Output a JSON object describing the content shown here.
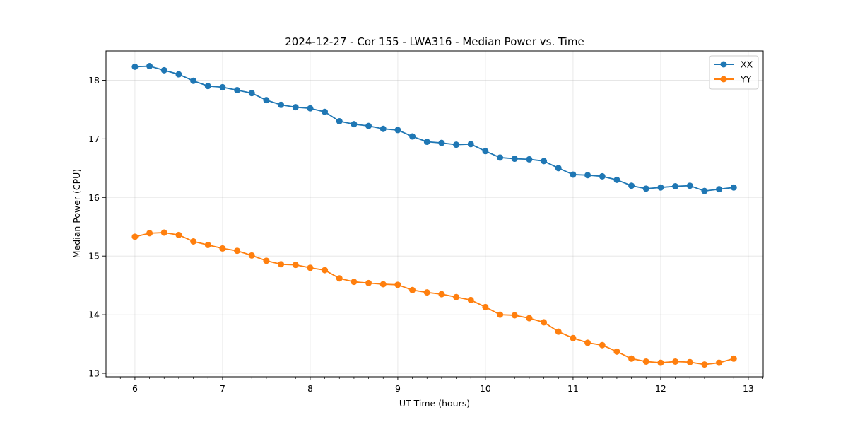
{
  "chart_data": {
    "type": "line",
    "title": "2024-12-27 - Cor 155 - LWA316 - Median Power vs. Time",
    "xlabel": "UT Time (hours)",
    "ylabel": "Median Power (CPU)",
    "xlim": [
      5.67,
      13.17
    ],
    "ylim": [
      12.94,
      18.5
    ],
    "xticks": [
      6,
      7,
      8,
      9,
      10,
      11,
      12,
      13
    ],
    "yticks": [
      13,
      14,
      15,
      16,
      17,
      18
    ],
    "grid": true,
    "legend_position": "top-right",
    "x": [
      6.0,
      6.1667,
      6.3333,
      6.5,
      6.6667,
      6.8333,
      7.0,
      7.1667,
      7.3333,
      7.5,
      7.6667,
      7.8333,
      8.0,
      8.1667,
      8.3333,
      8.5,
      8.6667,
      8.8333,
      9.0,
      9.1667,
      9.3333,
      9.5,
      9.6667,
      9.8333,
      10.0,
      10.1667,
      10.3333,
      10.5,
      10.6667,
      10.8333,
      11.0,
      11.1667,
      11.3333,
      11.5,
      11.6667,
      11.8333,
      12.0,
      12.1667,
      12.3333,
      12.5,
      12.6667,
      12.8333
    ],
    "series": [
      {
        "name": "XX",
        "color": "#1f77b4",
        "values": [
          18.23,
          18.24,
          18.17,
          18.1,
          17.99,
          17.9,
          17.88,
          17.83,
          17.78,
          17.66,
          17.58,
          17.54,
          17.52,
          17.46,
          17.3,
          17.25,
          17.22,
          17.17,
          17.15,
          17.04,
          16.95,
          16.93,
          16.9,
          16.91,
          16.79,
          16.68,
          16.66,
          16.65,
          16.62,
          16.5,
          16.39,
          16.38,
          16.36,
          16.3,
          16.2,
          16.15,
          16.17,
          16.19,
          16.2,
          16.11,
          16.14,
          16.17
        ]
      },
      {
        "name": "YY",
        "color": "#ff7f0e",
        "values": [
          15.33,
          15.39,
          15.4,
          15.36,
          15.25,
          15.19,
          15.13,
          15.09,
          15.01,
          14.92,
          14.86,
          14.85,
          14.8,
          14.76,
          14.62,
          14.56,
          14.54,
          14.52,
          14.51,
          14.42,
          14.38,
          14.35,
          14.3,
          14.25,
          14.13,
          14.0,
          13.99,
          13.94,
          13.87,
          13.71,
          13.6,
          13.52,
          13.48,
          13.37,
          13.25,
          13.2,
          13.18,
          13.2,
          13.19,
          13.15,
          13.18,
          13.25
        ]
      }
    ]
  }
}
